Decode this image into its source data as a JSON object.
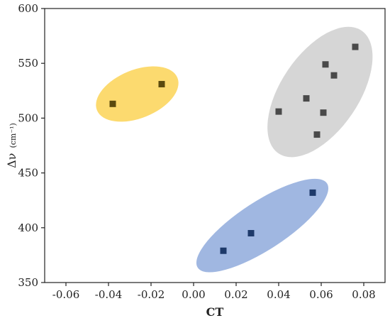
{
  "chart_data": {
    "type": "scatter",
    "title": "",
    "xlabel": "CT",
    "ylabel": "Δν",
    "ylabel_unit": "(cm⁻¹)",
    "xlim": [
      -0.07,
      0.09
    ],
    "ylim": [
      350,
      600
    ],
    "xticks": [
      -0.06,
      -0.04,
      -0.02,
      0.0,
      0.02,
      0.04,
      0.06,
      0.08
    ],
    "xtick_labels": [
      "-0.06",
      "-0.04",
      "-0.02",
      "0.00",
      "0.02",
      "0.04",
      "0.06",
      "0.08"
    ],
    "yticks": [
      350,
      400,
      450,
      500,
      550,
      600
    ],
    "ytick_labels": [
      "350",
      "400",
      "450",
      "500",
      "550",
      "600"
    ],
    "grid": false,
    "series": [
      {
        "color": "#5b4a0e",
        "marker": "square",
        "cluster_color": "#fbd356",
        "points": [
          {
            "x": -0.038,
            "y": 513
          },
          {
            "x": -0.015,
            "y": 531
          }
        ]
      },
      {
        "color": "#4a4a4a",
        "marker": "square",
        "cluster_color": "#cfcfcf",
        "points": [
          {
            "x": 0.076,
            "y": 565
          },
          {
            "x": 0.062,
            "y": 549
          },
          {
            "x": 0.066,
            "y": 539
          },
          {
            "x": 0.053,
            "y": 518
          },
          {
            "x": 0.04,
            "y": 506
          },
          {
            "x": 0.061,
            "y": 505
          },
          {
            "x": 0.058,
            "y": 485
          }
        ]
      },
      {
        "color": "#1e3a6a",
        "marker": "square",
        "cluster_color": "#8faadc",
        "points": [
          {
            "x": 0.056,
            "y": 432
          },
          {
            "x": 0.027,
            "y": 395
          },
          {
            "x": 0.014,
            "y": 379
          }
        ]
      }
    ]
  }
}
